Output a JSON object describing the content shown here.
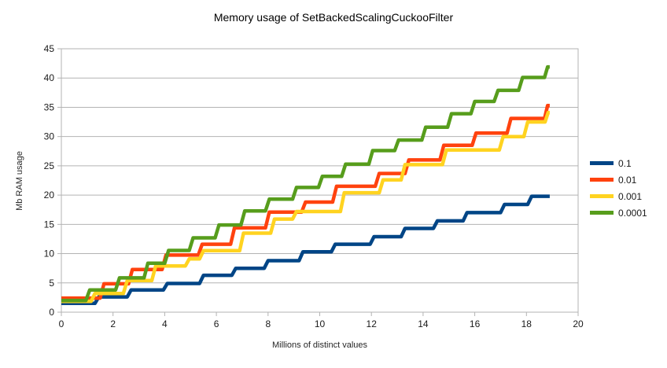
{
  "chart": {
    "title": "Memory usage of SetBackedScalingCuckooFilter",
    "x_axis_title": "Millions of distinct values",
    "y_axis_title": "Mb RAM usage",
    "frame_color": "#b3b3b3",
    "grid_color": "#b3b3b3",
    "tick_label_color": "#1a1a1a",
    "background": "#ffffff"
  },
  "chart_data": {
    "type": "line",
    "line_style": "stepped",
    "title": "Memory usage of SetBackedScalingCuckooFilter",
    "xlabel": "Millions of distinct values",
    "ylabel": "Mb RAM usage",
    "xlim": [
      0,
      20
    ],
    "ylim": [
      0,
      45
    ],
    "x_ticks": [
      0,
      2,
      4,
      6,
      8,
      10,
      12,
      14,
      16,
      18,
      20
    ],
    "y_ticks": [
      0,
      5,
      10,
      15,
      20,
      25,
      30,
      35,
      40,
      45
    ],
    "grid": "horizontal",
    "legend_position": "right",
    "series": [
      {
        "name": "0.1",
        "color": "#004586",
        "points": [
          [
            0,
            1.5
          ],
          [
            1.3,
            1.5
          ],
          [
            1.45,
            2.6
          ],
          [
            2.55,
            2.6
          ],
          [
            2.7,
            3.8
          ],
          [
            3.95,
            3.8
          ],
          [
            4.1,
            4.9
          ],
          [
            5.35,
            4.9
          ],
          [
            5.5,
            6.3
          ],
          [
            6.6,
            6.3
          ],
          [
            6.75,
            7.5
          ],
          [
            7.85,
            7.5
          ],
          [
            8.0,
            8.8
          ],
          [
            9.2,
            8.8
          ],
          [
            9.35,
            10.3
          ],
          [
            10.45,
            10.3
          ],
          [
            10.6,
            11.6
          ],
          [
            11.95,
            11.6
          ],
          [
            12.1,
            12.9
          ],
          [
            13.15,
            12.9
          ],
          [
            13.3,
            14.3
          ],
          [
            14.4,
            14.3
          ],
          [
            14.55,
            15.6
          ],
          [
            15.55,
            15.6
          ],
          [
            15.7,
            17.0
          ],
          [
            17.0,
            17.0
          ],
          [
            17.15,
            18.4
          ],
          [
            18.05,
            18.4
          ],
          [
            18.2,
            19.8
          ],
          [
            18.9,
            19.8
          ]
        ]
      },
      {
        "name": "0.01",
        "color": "#FF420E",
        "points": [
          [
            0,
            2.4
          ],
          [
            1.5,
            2.4
          ],
          [
            1.65,
            4.85
          ],
          [
            2.6,
            4.85
          ],
          [
            2.75,
            7.3
          ],
          [
            3.9,
            7.3
          ],
          [
            4.05,
            9.75
          ],
          [
            5.3,
            9.75
          ],
          [
            5.45,
            11.6
          ],
          [
            6.55,
            11.6
          ],
          [
            6.7,
            14.4
          ],
          [
            7.9,
            14.4
          ],
          [
            8.05,
            17.1
          ],
          [
            9.3,
            17.1
          ],
          [
            9.45,
            18.8
          ],
          [
            10.5,
            18.8
          ],
          [
            10.65,
            21.5
          ],
          [
            12.15,
            21.5
          ],
          [
            12.3,
            23.7
          ],
          [
            13.3,
            23.7
          ],
          [
            13.45,
            26.0
          ],
          [
            14.65,
            26.0
          ],
          [
            14.8,
            28.5
          ],
          [
            15.9,
            28.5
          ],
          [
            16.05,
            30.6
          ],
          [
            17.25,
            30.6
          ],
          [
            17.4,
            33.1
          ],
          [
            18.7,
            33.1
          ],
          [
            18.82,
            35.3
          ],
          [
            18.9,
            35.3
          ]
        ]
      },
      {
        "name": "0.001",
        "color": "#FFD320",
        "points": [
          [
            0,
            1.85
          ],
          [
            1.15,
            1.85
          ],
          [
            1.3,
            3.2
          ],
          [
            2.4,
            3.2
          ],
          [
            2.55,
            5.4
          ],
          [
            3.5,
            5.4
          ],
          [
            3.65,
            7.9
          ],
          [
            4.8,
            7.9
          ],
          [
            4.95,
            9.1
          ],
          [
            5.35,
            9.1
          ],
          [
            5.5,
            10.5
          ],
          [
            6.9,
            10.5
          ],
          [
            7.05,
            13.5
          ],
          [
            8.1,
            13.5
          ],
          [
            8.25,
            15.9
          ],
          [
            8.95,
            15.9
          ],
          [
            9.1,
            17.2
          ],
          [
            10.8,
            17.2
          ],
          [
            10.95,
            20.4
          ],
          [
            12.3,
            20.4
          ],
          [
            12.45,
            22.6
          ],
          [
            13.15,
            22.6
          ],
          [
            13.3,
            25.2
          ],
          [
            14.75,
            25.2
          ],
          [
            14.9,
            27.7
          ],
          [
            16.95,
            27.7
          ],
          [
            17.1,
            30.0
          ],
          [
            17.9,
            30.0
          ],
          [
            18.05,
            32.5
          ],
          [
            18.72,
            32.5
          ],
          [
            18.84,
            34.1
          ],
          [
            18.9,
            34.1
          ]
        ]
      },
      {
        "name": "0.0001",
        "color": "#579D1C",
        "points": [
          [
            0,
            2.0
          ],
          [
            0.95,
            2.0
          ],
          [
            1.1,
            3.8
          ],
          [
            2.1,
            3.8
          ],
          [
            2.25,
            5.85
          ],
          [
            3.2,
            5.85
          ],
          [
            3.35,
            8.35
          ],
          [
            4.0,
            8.35
          ],
          [
            4.15,
            10.55
          ],
          [
            4.95,
            10.55
          ],
          [
            5.1,
            12.7
          ],
          [
            5.95,
            12.7
          ],
          [
            6.1,
            14.9
          ],
          [
            6.95,
            14.9
          ],
          [
            7.1,
            17.3
          ],
          [
            7.9,
            17.3
          ],
          [
            8.05,
            19.3
          ],
          [
            8.95,
            19.3
          ],
          [
            9.1,
            21.3
          ],
          [
            9.95,
            21.3
          ],
          [
            10.1,
            23.2
          ],
          [
            10.85,
            23.2
          ],
          [
            11.0,
            25.3
          ],
          [
            11.9,
            25.3
          ],
          [
            12.05,
            27.6
          ],
          [
            12.9,
            27.6
          ],
          [
            13.05,
            29.4
          ],
          [
            13.95,
            29.4
          ],
          [
            14.1,
            31.6
          ],
          [
            14.95,
            31.6
          ],
          [
            15.1,
            33.9
          ],
          [
            15.85,
            33.9
          ],
          [
            16.0,
            36.0
          ],
          [
            16.75,
            36.0
          ],
          [
            16.9,
            37.9
          ],
          [
            17.7,
            37.9
          ],
          [
            17.85,
            40.1
          ],
          [
            18.7,
            40.1
          ],
          [
            18.82,
            41.9
          ],
          [
            18.9,
            41.9
          ]
        ]
      }
    ]
  }
}
